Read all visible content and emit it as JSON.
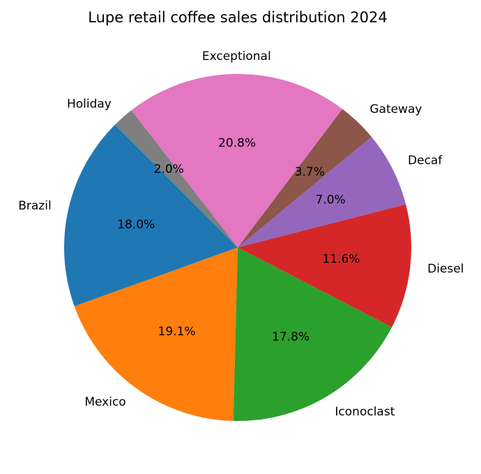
{
  "chart_data": {
    "type": "pie",
    "title": "Lupe retail coffee sales distribution 2024",
    "categories": [
      "Brazil",
      "Mexico",
      "Iconoclast",
      "Diesel",
      "Decaf",
      "Gateway",
      "Exceptional",
      "Holiday"
    ],
    "values": [
      18.0,
      19.1,
      17.8,
      11.6,
      7.0,
      3.7,
      20.8,
      2.0
    ],
    "value_labels": [
      "18.0%",
      "19.1%",
      "17.8%",
      "11.6%",
      "7.0%",
      "3.7%",
      "20.8%",
      "2.0%"
    ],
    "colors": [
      "#1f77b4",
      "#ff7f0e",
      "#2ca02c",
      "#d62728",
      "#9467bd",
      "#8c564b",
      "#e377c2",
      "#7f7f7f"
    ],
    "start_angle_deg": 135,
    "direction": "counterclockwise",
    "legend": "none"
  }
}
